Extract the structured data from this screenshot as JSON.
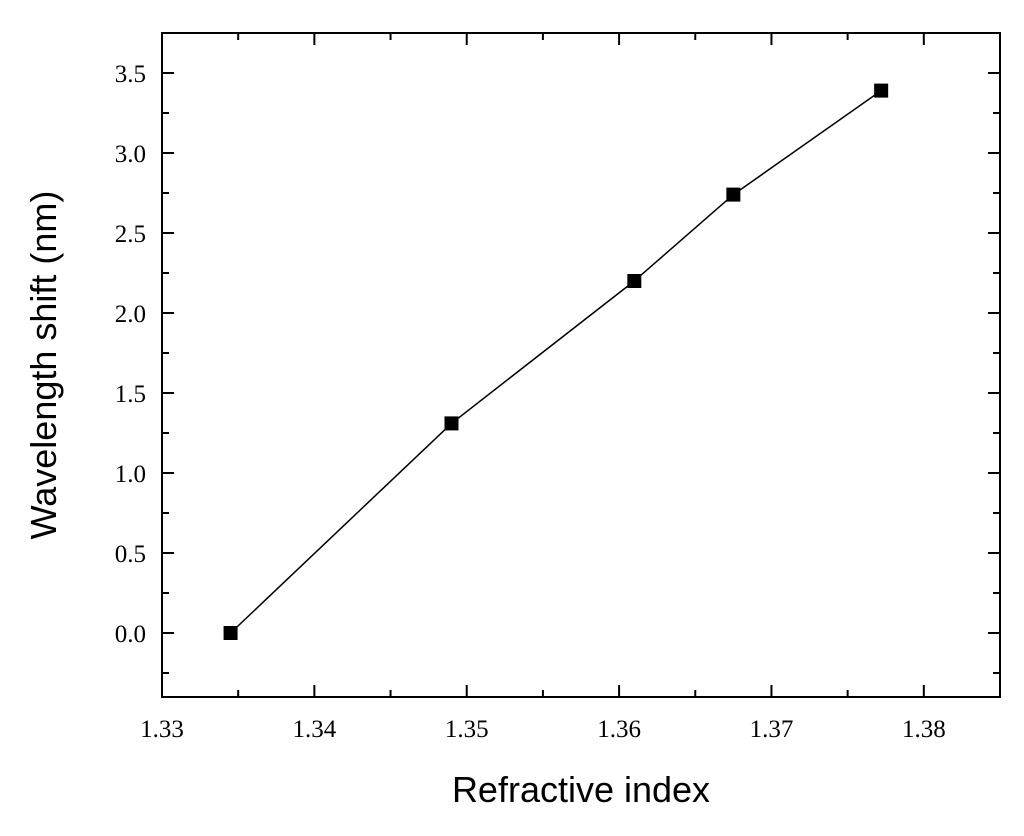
{
  "chart_data": {
    "type": "line",
    "title": "",
    "xlabel": "Refractive index",
    "ylabel": "Wavelength shift (nm)",
    "xlim": [
      1.33,
      1.385
    ],
    "ylim": [
      -0.4,
      3.75
    ],
    "x_ticks": [
      1.33,
      1.34,
      1.35,
      1.36,
      1.37,
      1.38
    ],
    "x_tick_labels": [
      "1.33",
      "1.34",
      "1.35",
      "1.36",
      "1.37",
      "1.38"
    ],
    "y_ticks": [
      0.0,
      0.5,
      1.0,
      1.5,
      2.0,
      2.5,
      3.0,
      3.5
    ],
    "y_tick_labels": [
      "0.0",
      "0.5",
      "1.0",
      "1.5",
      "2.0",
      "2.5",
      "3.0",
      "3.5"
    ],
    "grid": false,
    "marker": "square",
    "series": [
      {
        "x": [
          1.3345,
          1.349,
          1.361,
          1.3675,
          1.3772
        ],
        "y": [
          0.0,
          1.31,
          2.2,
          2.74,
          3.39
        ]
      }
    ]
  }
}
